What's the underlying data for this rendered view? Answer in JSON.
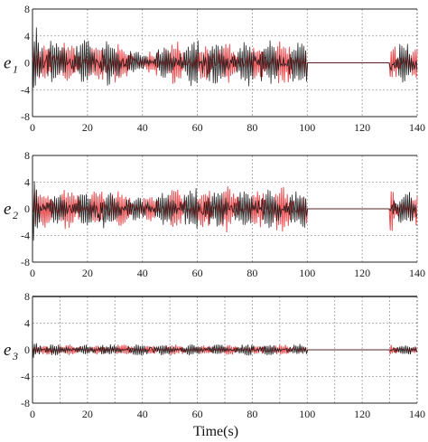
{
  "chart_data": [
    {
      "type": "line",
      "ylabel": "e",
      "ylabel_sub": "1",
      "xlabel": "",
      "xlim": [
        0,
        140
      ],
      "ylim": [
        -8,
        8
      ],
      "xticks": [
        "0",
        "20",
        "40",
        "60",
        "80",
        "100",
        "120",
        "140"
      ],
      "yticks": [
        "8",
        "4",
        "0",
        "-4",
        "-8"
      ],
      "grid": true,
      "series": [
        {
          "color": "#e8474a",
          "role": "reference",
          "amplitude": 3.2,
          "segments": [
            [
              0,
              100
            ],
            [
              130,
              140
            ]
          ],
          "flat_value": 0
        },
        {
          "color": "#111111",
          "role": "actual",
          "amplitude": 3.6,
          "segments": [
            [
              0,
              100
            ],
            [
              130,
              140
            ]
          ],
          "flat_value": 0
        }
      ],
      "envelope_peaks": [
        [
          0,
          7
        ],
        [
          20,
          4.6
        ],
        [
          40,
          1.2
        ],
        [
          60,
          4.2
        ],
        [
          80,
          4.2
        ],
        [
          100,
          3.5
        ]
      ]
    },
    {
      "type": "line",
      "ylabel": "e",
      "ylabel_sub": "2",
      "xlabel": "",
      "xlim": [
        0,
        140
      ],
      "ylim": [
        -8,
        8
      ],
      "xticks": [
        "0",
        "20",
        "40",
        "60",
        "80",
        "100",
        "120",
        "140"
      ],
      "yticks": [
        "8",
        "4",
        "0",
        "-4",
        "-8"
      ],
      "grid": true,
      "series": [
        {
          "color": "#e8474a",
          "role": "reference",
          "amplitude": 3.3,
          "segments": [
            [
              0,
              100
            ],
            [
              130,
              140
            ]
          ],
          "flat_value": 0
        },
        {
          "color": "#111111",
          "role": "actual",
          "amplitude": 3.1,
          "segments": [
            [
              0,
              100
            ],
            [
              130,
              140
            ]
          ],
          "flat_value": 0
        }
      ],
      "envelope_peaks": [
        [
          0,
          4.5
        ],
        [
          20,
          4.0
        ],
        [
          40,
          1.5
        ],
        [
          60,
          4.0
        ],
        [
          80,
          3.8
        ],
        [
          100,
          3.2
        ]
      ]
    },
    {
      "type": "line",
      "ylabel": "e",
      "ylabel_sub": "3",
      "xlabel": "Time(s)",
      "xlim": [
        0,
        140
      ],
      "ylim": [
        -8,
        8
      ],
      "xticks": [
        "0",
        "20",
        "40",
        "60",
        "80",
        "100",
        "120",
        "140"
      ],
      "yticks": [
        "8",
        "4",
        "0",
        "-4",
        "-8"
      ],
      "grid": true,
      "series": [
        {
          "color": "#e8474a",
          "role": "reference",
          "amplitude": 0.8,
          "segments": [
            [
              0,
              100
            ],
            [
              130,
              140
            ]
          ],
          "flat_value": 0
        },
        {
          "color": "#111111",
          "role": "actual",
          "amplitude": 0.9,
          "segments": [
            [
              0,
              100
            ],
            [
              130,
              140
            ]
          ],
          "flat_value": 0
        }
      ],
      "envelope_peaks": [
        [
          0,
          2.5
        ],
        [
          20,
          1.0
        ],
        [
          40,
          1.0
        ],
        [
          60,
          1.0
        ],
        [
          80,
          1.0
        ],
        [
          100,
          1.0
        ]
      ]
    }
  ]
}
